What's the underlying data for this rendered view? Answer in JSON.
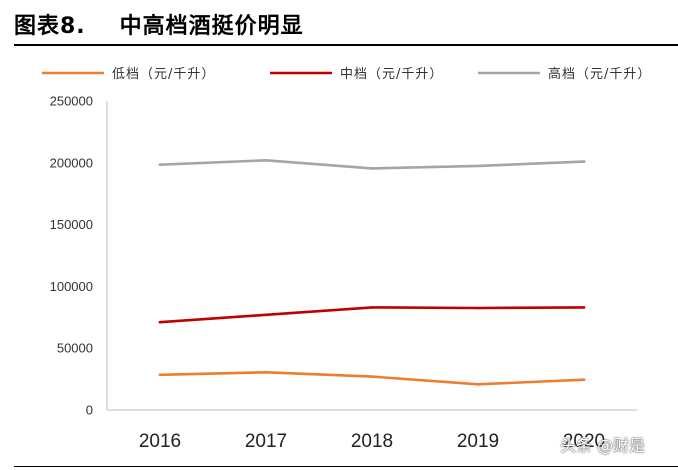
{
  "figure": {
    "title_prefix": "图表8.",
    "title": "中高档酒挺价明显",
    "watermark": "头条 @财是"
  },
  "chart_data": {
    "type": "line",
    "x": [
      "2016",
      "2017",
      "2018",
      "2019",
      "2020"
    ],
    "ylim": [
      0,
      250000
    ],
    "yticks": [
      0,
      50000,
      100000,
      150000,
      200000,
      250000
    ],
    "grid": false,
    "legend_position": "top",
    "series": [
      {
        "name": "低档（元/千升）",
        "color": "#ED7D31",
        "values": [
          28500,
          30500,
          27000,
          20800,
          24500
        ]
      },
      {
        "name": "中档（元/千升）",
        "color": "#C00000",
        "values": [
          71000,
          77000,
          83000,
          82500,
          83000
        ]
      },
      {
        "name": "高档（元/千升）",
        "color": "#A5A5A5",
        "values": [
          198500,
          202000,
          195500,
          197500,
          201000
        ]
      }
    ]
  }
}
